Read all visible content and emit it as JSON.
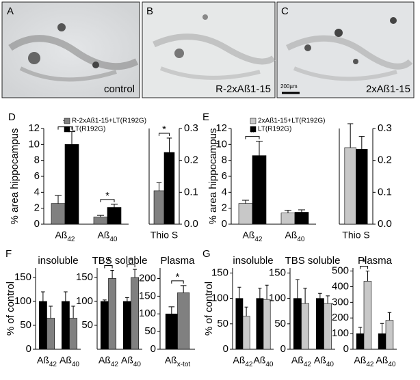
{
  "images": [
    {
      "panel": "A",
      "caption": "control"
    },
    {
      "panel": "B",
      "caption": "R-2xAß1-15"
    },
    {
      "panel": "C",
      "caption": "2xAß1-15",
      "scale_bar": "200µm"
    }
  ],
  "chart_data": [
    {
      "type": "bar",
      "panel": "D",
      "ylabel": "% area hippocampus",
      "categories": [
        "Aß42",
        "Aß40"
      ],
      "series": [
        {
          "name": "R-2xAß1-15+LT(R192G)",
          "color": "#808080",
          "values": [
            2.6,
            0.9
          ],
          "errors": [
            1.0,
            0.2
          ]
        },
        {
          "name": "LT(R192G)",
          "color": "#000000",
          "values": [
            10,
            2.1
          ],
          "errors": [
            1.6,
            0.4
          ]
        }
      ],
      "ylim": [
        0,
        12
      ],
      "yticks": [
        0,
        2,
        4,
        6,
        8,
        10,
        12
      ],
      "significant": [
        true,
        true
      ],
      "significance_mark": "*"
    },
    {
      "type": "bar",
      "categories": [
        "Thio S"
      ],
      "yaxis_side": "right",
      "series": [
        {
          "color": "#808080",
          "values": [
            0.105
          ],
          "errors": [
            0.025
          ]
        },
        {
          "color": "#000000",
          "values": [
            0.225
          ],
          "errors": [
            0.045
          ]
        }
      ],
      "ylim": [
        0,
        0.3
      ],
      "yticks": [
        {
          "value": 0,
          "label": "0.0"
        },
        0.1,
        0.2,
        0.3
      ],
      "significant": [
        true
      ],
      "significance_mark": "*"
    },
    {
      "type": "bar",
      "panel": "E",
      "ylabel": "% area hippocampus",
      "categories": [
        "Aß42",
        "Aß40"
      ],
      "series": [
        {
          "name": "2xAß1-15+LT(R192G)",
          "color": "#c8c8c8",
          "values": [
            2.6,
            1.4
          ],
          "errors": [
            0.4,
            0.35
          ]
        },
        {
          "name": "LT(R192G)",
          "color": "#000000",
          "values": [
            8.6,
            1.5
          ],
          "errors": [
            1.8,
            0.3
          ]
        }
      ],
      "ylim": [
        0,
        12
      ],
      "yticks": [
        0,
        2,
        4,
        6,
        8,
        10,
        12
      ],
      "significant": [
        true,
        false
      ],
      "significance_mark": "*"
    },
    {
      "type": "bar",
      "categories": [
        "Thio S"
      ],
      "yaxis_side": "right",
      "series": [
        {
          "color": "#c8c8c8",
          "values": [
            0.24
          ],
          "errors": [
            0.075
          ]
        },
        {
          "color": "#000000",
          "values": [
            0.235
          ],
          "errors": [
            0.04
          ]
        }
      ],
      "ylim": [
        0,
        0.3
      ],
      "yticks": [
        {
          "value": 0,
          "label": "0.0"
        },
        0.1,
        0.2,
        0.3
      ],
      "significant": [
        false
      ],
      "significance_mark": "*"
    },
    {
      "type": "bar",
      "panel": "F",
      "ylabel": "% of control",
      "title": "insoluble",
      "categories": [
        "Aß42",
        "Aß40"
      ],
      "series": [
        {
          "color": "#000000",
          "values": [
            100,
            100
          ],
          "errors": [
            20,
            20
          ]
        },
        {
          "color": "#808080",
          "values": [
            65,
            65
          ],
          "errors": [
            25,
            25
          ]
        }
      ],
      "ylim": [
        0,
        170
      ],
      "yticks": [
        0,
        50,
        100,
        150
      ],
      "significant": [
        false,
        false
      ],
      "significance_mark": "*"
    },
    {
      "type": "bar",
      "title": "TBS soluble",
      "categories": [
        "Aß42",
        "Aß40"
      ],
      "series": [
        {
          "color": "#000000",
          "values": [
            100,
            100
          ],
          "errors": [
            3,
            8
          ]
        },
        {
          "color": "#808080",
          "values": [
            148,
            150
          ],
          "errors": [
            17,
            17
          ]
        }
      ],
      "ylim": [
        0,
        170
      ],
      "yticks": [
        50,
        100,
        150
      ],
      "significant": [
        true,
        true
      ],
      "significance_mark": "*"
    },
    {
      "type": "bar",
      "title": "Plasma",
      "categories": [
        "Aßx-tot"
      ],
      "series": [
        {
          "color": "#000000",
          "values": [
            100
          ],
          "errors": [
            20
          ]
        },
        {
          "color": "#808080",
          "values": [
            160
          ],
          "errors": [
            20
          ]
        }
      ],
      "ylim": [
        0,
        230
      ],
      "yticks": [
        0,
        50,
        100,
        150,
        200
      ],
      "significant": [
        true
      ],
      "significance_mark": "*"
    },
    {
      "type": "bar",
      "panel": "G",
      "ylabel": "% of control",
      "title": "insoluble",
      "categories": [
        "Aß42",
        "Aß40"
      ],
      "series": [
        {
          "color": "#000000",
          "values": [
            100,
            100
          ],
          "errors": [
            22,
            20
          ]
        },
        {
          "color": "#c8c8c8",
          "values": [
            65,
            98
          ],
          "errors": [
            18,
            28
          ]
        }
      ],
      "ylim": [
        0,
        160
      ],
      "yticks": [
        0,
        50,
        100,
        150
      ],
      "significant": [
        false,
        false
      ],
      "significance_mark": "*"
    },
    {
      "type": "bar",
      "title": "TBS soluble",
      "categories": [
        "Aß42",
        "Aß40"
      ],
      "series": [
        {
          "color": "#000000",
          "values": [
            100,
            100
          ],
          "errors": [
            37,
            10
          ]
        },
        {
          "color": "#c8c8c8",
          "values": [
            90,
            90
          ],
          "errors": [
            30,
            15
          ]
        }
      ],
      "ylim": [
        0,
        160
      ],
      "yticks": [
        0,
        50,
        100,
        150
      ],
      "significant": [
        false,
        false
      ],
      "significance_mark": "*"
    },
    {
      "type": "bar",
      "title": "Plasma",
      "categories": [
        "Aß42",
        "Aß40"
      ],
      "series": [
        {
          "color": "#000000",
          "values": [
            100,
            100
          ],
          "errors": [
            40,
            65
          ]
        },
        {
          "color": "#c8c8c8",
          "values": [
            435,
            185
          ],
          "errors": [
            65,
            50
          ]
        }
      ],
      "ylim": [
        0,
        520
      ],
      "yticks": [
        0,
        100,
        200,
        300,
        400,
        500
      ],
      "significant": [
        true,
        false
      ],
      "significance_mark": "*"
    }
  ]
}
